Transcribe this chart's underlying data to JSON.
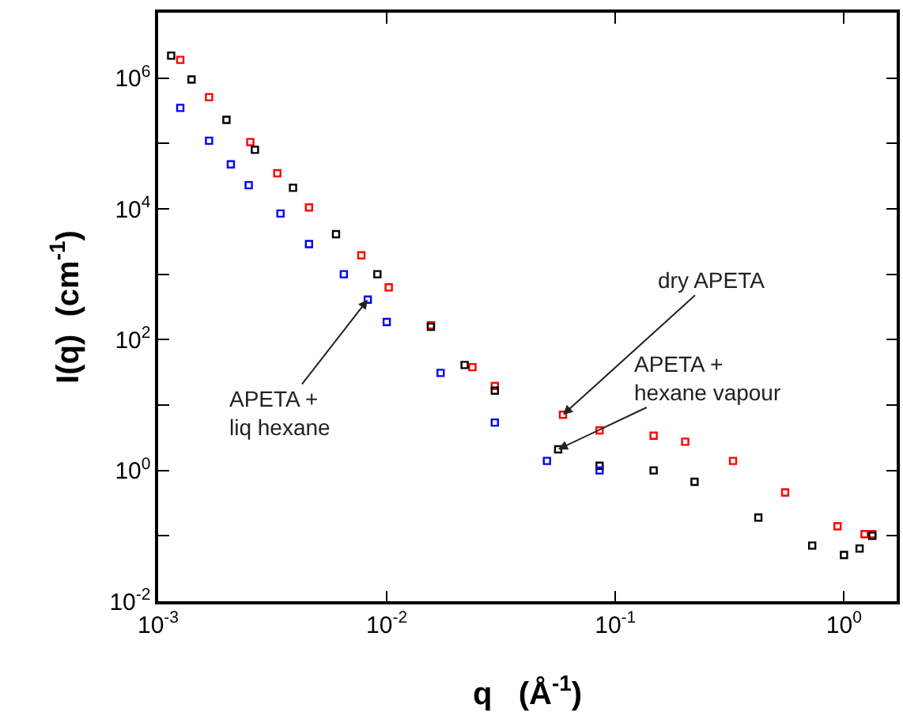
{
  "chart_data": {
    "type": "scatter",
    "xlabel": "q   (Å$^{-1}$)",
    "ylabel": "I(q)  (cm$^{-1}$)",
    "log": "xy",
    "grid": false,
    "marker": "square",
    "xlim": [
      0.001,
      1.7
    ],
    "ylim": [
      0.01,
      10000000
    ],
    "xticks": [
      {
        "value": 0.001,
        "label": "10$^{-3}$"
      },
      {
        "value": 0.01,
        "label": "10$^{-2}$"
      },
      {
        "value": 0.1,
        "label": "10$^{-1}$"
      },
      {
        "value": 1,
        "label": "10$^{0}$"
      }
    ],
    "yticks": [
      {
        "value": 0.01,
        "label": "10$^{-2}$"
      },
      {
        "value": 0.1,
        "label": null
      },
      {
        "value": 1,
        "label": "10$^{0}$"
      },
      {
        "value": 10,
        "label": null
      },
      {
        "value": 100,
        "label": "10$^{2}$"
      },
      {
        "value": 1000,
        "label": null
      },
      {
        "value": 10000,
        "label": "10$^{4}$"
      },
      {
        "value": 100000,
        "label": null
      },
      {
        "value": 1000000,
        "label": "10$^{6}$"
      }
    ],
    "series": [
      {
        "color": "#ff0000",
        "x": [
          0.00125,
          0.00167,
          0.00253,
          0.00332,
          0.00457,
          0.00774,
          0.0102,
          0.0156,
          0.0237,
          0.0297,
          0.059,
          0.0853,
          0.147,
          0.202,
          0.327,
          0.553,
          0.937,
          1.23,
          1.33
        ],
        "values": [
          1900000,
          510000,
          105000,
          35000,
          10500,
          1950,
          630,
          166,
          38,
          19.6,
          7.1,
          4.1,
          3.4,
          2.75,
          1.4,
          0.46,
          0.14,
          0.106,
          0.106
        ]
      },
      {
        "color": "#000000",
        "x": [
          0.00114,
          0.0014,
          0.00199,
          0.00265,
          0.00389,
          0.006,
          0.0091,
          0.0156,
          0.0219,
          0.0297,
          0.0562,
          0.0853,
          0.147,
          0.222,
          0.422,
          0.726,
          1.0,
          1.17,
          1.33
        ],
        "values": [
          2200000,
          950000,
          230000,
          80000,
          21000,
          4100,
          1000,
          157,
          41,
          16.6,
          2.1,
          1.18,
          1.0,
          0.67,
          0.19,
          0.071,
          0.051,
          0.064,
          0.1
        ]
      },
      {
        "color": "#0000ff",
        "x": [
          0.00125,
          0.00167,
          0.00208,
          0.00249,
          0.00343,
          0.00457,
          0.00649,
          0.00826,
          0.01,
          0.0172,
          0.0297,
          0.0502,
          0.0853
        ],
        "values": [
          350000,
          110000,
          48000,
          23000,
          8500,
          2900,
          1000,
          410,
          186,
          31,
          5.4,
          1.4,
          1.0
        ]
      }
    ],
    "annotations": [
      {
        "text": "dry APETA",
        "x": 0.059,
        "y": 7.1
      },
      {
        "text": "APETA +\nhexane vapour",
        "x": 0.0562,
        "y": 2.1
      },
      {
        "text": "APETA +\nliq hexane",
        "x": 0.00826,
        "y": 410
      }
    ]
  }
}
